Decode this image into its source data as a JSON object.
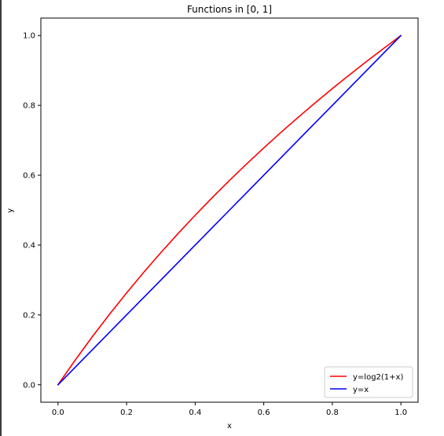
{
  "chart_data": {
    "type": "line",
    "title": "Functions in [0, 1]",
    "xlabel": "x",
    "ylabel": "y",
    "xlim": [
      -0.05,
      1.05
    ],
    "ylim": [
      -0.05,
      1.05
    ],
    "xticks": [
      "0.0",
      "0.2",
      "0.4",
      "0.6",
      "0.8",
      "1.0"
    ],
    "yticks": [
      "0.0",
      "0.2",
      "0.4",
      "0.6",
      "0.8",
      "1.0"
    ],
    "grid": false,
    "legend_position": "lower-right",
    "x": [
      0.0,
      0.05,
      0.1,
      0.15,
      0.2,
      0.25,
      0.3,
      0.35,
      0.4,
      0.45,
      0.5,
      0.55,
      0.6,
      0.65,
      0.7,
      0.75,
      0.8,
      0.85,
      0.9,
      0.95,
      1.0
    ],
    "series": [
      {
        "name": "y=log2(1+x)",
        "color": "#ff0000",
        "values": [
          0.0,
          0.0704,
          0.1375,
          0.2016,
          0.263,
          0.3219,
          0.3785,
          0.433,
          0.4854,
          0.5361,
          0.585,
          0.6323,
          0.6781,
          0.7225,
          0.7655,
          0.8074,
          0.848,
          0.8875,
          0.926,
          0.9635,
          1.0
        ]
      },
      {
        "name": "y=x",
        "color": "#0000ff",
        "values": [
          0.0,
          0.05,
          0.1,
          0.15,
          0.2,
          0.25,
          0.3,
          0.35,
          0.4,
          0.45,
          0.5,
          0.55,
          0.6,
          0.65,
          0.7,
          0.75,
          0.8,
          0.85,
          0.9,
          0.95,
          1.0
        ]
      }
    ]
  }
}
